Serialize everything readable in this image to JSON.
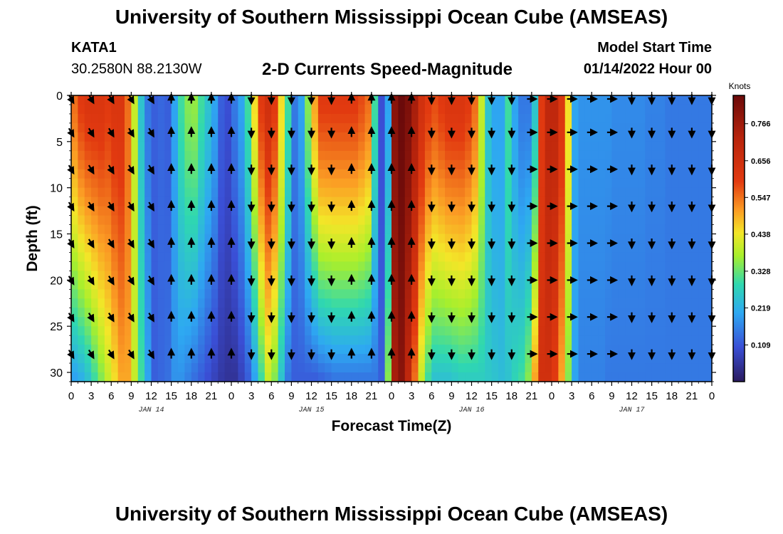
{
  "header": {
    "title": "University of Southern Mississippi Ocean Cube (AMSEAS)",
    "station_id": "KATA1",
    "coordinates": "30.2580N  88.2130W",
    "subtitle": "2-D Currents Speed-Magnitude",
    "model_start_label": "Model Start Time",
    "model_start_value": "01/14/2022 Hour 00"
  },
  "footer": {
    "title": "University of Southern Mississippi Ocean Cube (AMSEAS)"
  },
  "chart_data": {
    "type": "heatmap",
    "title": "2-D Currents Speed-Magnitude",
    "xlabel": "Forecast Time(Z)",
    "ylabel": "Depth (ft)",
    "xlim": [
      0,
      96
    ],
    "ylim": [
      0,
      31
    ],
    "x_tick_values": [
      0,
      3,
      6,
      9,
      12,
      15,
      18,
      21,
      24,
      27,
      30,
      33,
      36,
      39,
      42,
      45,
      48,
      51,
      54,
      57,
      60,
      63,
      66,
      69,
      72,
      75,
      78,
      81,
      84,
      87,
      90,
      93,
      96
    ],
    "x_tick_labels": [
      "0",
      "3",
      "6",
      "9",
      "12",
      "15",
      "18",
      "21",
      "0",
      "3",
      "6",
      "9",
      "12",
      "15",
      "18",
      "21",
      "0",
      "3",
      "6",
      "9",
      "12",
      "15",
      "18",
      "21",
      "0",
      "3",
      "6",
      "9",
      "12",
      "15",
      "18",
      "21",
      "0"
    ],
    "y_ticks": [
      0,
      5,
      10,
      15,
      20,
      25,
      30
    ],
    "y_tick_labels": [
      "0",
      "5",
      "10",
      "15",
      "20",
      "25",
      "30"
    ],
    "date_labels": [
      {
        "hour": 12,
        "label": "JAN 14"
      },
      {
        "hour": 36,
        "label": "JAN 15"
      },
      {
        "hour": 60,
        "label": "JAN 16"
      },
      {
        "hour": 84,
        "label": "JAN 17"
      }
    ],
    "colorbar": {
      "title": "Knots",
      "min": 0,
      "max": 0.85,
      "ticks": [
        0.109,
        0.219,
        0.328,
        0.438,
        0.547,
        0.656,
        0.766
      ],
      "tick_labels": [
        "0.109",
        "0.219",
        "0.328",
        "0.438",
        "0.547",
        "0.656",
        "0.766"
      ]
    },
    "speed_depth_profile": {
      "hours": [
        0,
        1,
        2,
        3,
        4,
        5,
        6,
        7,
        8,
        9,
        10,
        11,
        12,
        13,
        14,
        15,
        16,
        17,
        18,
        19,
        20,
        21,
        22,
        23,
        24,
        25,
        26,
        27,
        28,
        29,
        30,
        31,
        32,
        33,
        34,
        35,
        36,
        37,
        38,
        39,
        40,
        41,
        42,
        43,
        44,
        45,
        46,
        47,
        48,
        49,
        50,
        51,
        52,
        53,
        54,
        55,
        56,
        57,
        58,
        59,
        60,
        61,
        62,
        63,
        64,
        65,
        66,
        67,
        68,
        69,
        70,
        71,
        72,
        73,
        74,
        75,
        76,
        77,
        78,
        79,
        80,
        81,
        82,
        83,
        84,
        85,
        86,
        87,
        88,
        89,
        90,
        91,
        92,
        93,
        94,
        95,
        96
      ],
      "surface_knots": [
        0.55,
        0.6,
        0.62,
        0.62,
        0.62,
        0.6,
        0.62,
        0.62,
        0.55,
        0.4,
        0.25,
        0.15,
        0.12,
        0.13,
        0.12,
        0.2,
        0.3,
        0.35,
        0.36,
        0.3,
        0.25,
        0.2,
        0.12,
        0.1,
        0.15,
        0.2,
        0.3,
        0.45,
        0.6,
        0.65,
        0.6,
        0.45,
        0.3,
        0.15,
        0.2,
        0.35,
        0.5,
        0.6,
        0.6,
        0.6,
        0.6,
        0.6,
        0.6,
        0.58,
        0.55,
        0.3,
        0.1,
        0.2,
        0.8,
        0.85,
        0.82,
        0.75,
        0.65,
        0.6,
        0.58,
        0.6,
        0.62,
        0.62,
        0.62,
        0.6,
        0.55,
        0.4,
        0.25,
        0.2,
        0.2,
        0.3,
        0.2,
        0.15,
        0.15,
        0.25,
        0.6,
        0.7,
        0.7,
        0.62,
        0.45,
        0.2,
        0.18,
        0.18,
        0.18,
        0.18,
        0.18,
        0.17,
        0.17,
        0.17,
        0.17,
        0.17,
        0.16,
        0.16,
        0.16,
        0.15,
        0.15,
        0.15,
        0.15,
        0.15,
        0.15,
        0.15,
        0.15
      ],
      "bottom_knots": [
        0.2,
        0.22,
        0.25,
        0.3,
        0.35,
        0.4,
        0.45,
        0.5,
        0.5,
        0.4,
        0.3,
        0.2,
        0.12,
        0.13,
        0.14,
        0.18,
        0.18,
        0.16,
        0.14,
        0.12,
        0.1,
        0.08,
        0.06,
        0.05,
        0.05,
        0.08,
        0.12,
        0.2,
        0.3,
        0.4,
        0.35,
        0.25,
        0.15,
        0.12,
        0.12,
        0.12,
        0.12,
        0.13,
        0.14,
        0.15,
        0.15,
        0.15,
        0.15,
        0.15,
        0.15,
        0.15,
        0.12,
        0.35,
        0.75,
        0.8,
        0.7,
        0.55,
        0.4,
        0.3,
        0.25,
        0.25,
        0.25,
        0.26,
        0.27,
        0.27,
        0.27,
        0.27,
        0.26,
        0.25,
        0.24,
        0.25,
        0.28,
        0.3,
        0.35,
        0.5,
        0.65,
        0.65,
        0.6,
        0.5,
        0.35,
        0.2,
        0.16,
        0.16,
        0.16,
        0.16,
        0.15,
        0.15,
        0.15,
        0.15,
        0.15,
        0.15,
        0.15,
        0.15,
        0.15,
        0.15,
        0.15,
        0.15,
        0.15,
        0.15,
        0.15,
        0.15,
        0.15
      ]
    },
    "vector_depths_ft": [
      0,
      4,
      8,
      12,
      16,
      20,
      24,
      28
    ],
    "vector_hours": [
      0,
      3,
      6,
      9,
      12,
      15,
      18,
      21,
      24,
      27,
      30,
      33,
      36,
      39,
      42,
      45,
      48,
      51,
      54,
      57,
      60,
      63,
      66,
      69,
      72,
      75,
      78,
      81,
      84,
      87,
      90,
      93,
      96
    ],
    "vector_directions_deg": [
      [
        150,
        150,
        150,
        150,
        150,
        0,
        0,
        0,
        0,
        180,
        180,
        180,
        180,
        180,
        0,
        0,
        0,
        0,
        180,
        180,
        180,
        180,
        180,
        90,
        90,
        90,
        90,
        90,
        180,
        180,
        180,
        180,
        180
      ],
      [
        150,
        150,
        150,
        150,
        150,
        0,
        0,
        0,
        0,
        180,
        180,
        180,
        180,
        180,
        0,
        0,
        0,
        0,
        180,
        180,
        180,
        180,
        180,
        90,
        90,
        90,
        90,
        90,
        180,
        180,
        180,
        180,
        180
      ],
      [
        150,
        150,
        150,
        150,
        150,
        0,
        0,
        0,
        0,
        180,
        180,
        180,
        180,
        180,
        0,
        0,
        0,
        0,
        180,
        180,
        180,
        180,
        180,
        90,
        90,
        90,
        90,
        90,
        180,
        180,
        180,
        180,
        180
      ],
      [
        150,
        150,
        150,
        150,
        150,
        0,
        0,
        0,
        0,
        180,
        180,
        180,
        180,
        180,
        0,
        0,
        0,
        0,
        180,
        180,
        180,
        180,
        180,
        90,
        90,
        90,
        90,
        90,
        180,
        180,
        180,
        180,
        180
      ],
      [
        150,
        150,
        150,
        150,
        150,
        0,
        0,
        0,
        0,
        180,
        180,
        180,
        180,
        180,
        0,
        0,
        0,
        0,
        180,
        180,
        180,
        180,
        180,
        90,
        90,
        90,
        90,
        90,
        180,
        180,
        180,
        180,
        180
      ],
      [
        150,
        150,
        150,
        150,
        150,
        0,
        0,
        0,
        0,
        180,
        180,
        180,
        180,
        180,
        0,
        0,
        0,
        0,
        180,
        180,
        180,
        180,
        180,
        90,
        90,
        90,
        90,
        90,
        180,
        180,
        180,
        180,
        180
      ],
      [
        150,
        150,
        150,
        150,
        150,
        0,
        0,
        0,
        0,
        180,
        180,
        180,
        180,
        180,
        0,
        0,
        0,
        0,
        180,
        180,
        180,
        180,
        180,
        90,
        90,
        90,
        90,
        90,
        180,
        180,
        180,
        180,
        180
      ],
      [
        150,
        150,
        150,
        150,
        150,
        0,
        0,
        0,
        0,
        180,
        180,
        180,
        180,
        180,
        0,
        0,
        0,
        0,
        180,
        180,
        180,
        180,
        180,
        90,
        90,
        90,
        90,
        90,
        180,
        180,
        180,
        180,
        180
      ]
    ]
  }
}
